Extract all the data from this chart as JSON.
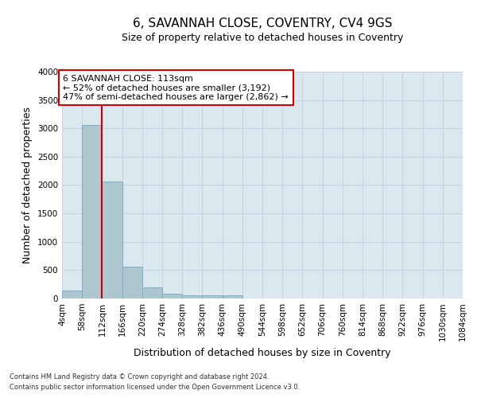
{
  "title": "6, SAVANNAH CLOSE, COVENTRY, CV4 9GS",
  "subtitle": "Size of property relative to detached houses in Coventry",
  "xlabel": "Distribution of detached houses by size in Coventry",
  "ylabel": "Number of detached properties",
  "bar_color": "#aec6cf",
  "bar_edge_color": "#7aafc8",
  "grid_color": "#c8d4e0",
  "bg_color": "#dce8f0",
  "bin_edges": [
    4,
    58,
    112,
    166,
    220,
    274,
    328,
    382,
    436,
    490,
    544,
    598,
    652,
    706,
    760,
    814,
    868,
    922,
    976,
    1030,
    1084
  ],
  "bar_heights": [
    140,
    3060,
    2060,
    560,
    200,
    80,
    60,
    50,
    50,
    0,
    0,
    0,
    0,
    0,
    0,
    0,
    0,
    0,
    0,
    0
  ],
  "property_line_x": 112,
  "property_line_color": "#cc0000",
  "annotation_text": "6 SAVANNAH CLOSE: 113sqm\n← 52% of detached houses are smaller (3,192)\n47% of semi-detached houses are larger (2,862) →",
  "annotation_box_color": "#cc0000",
  "ylim": [
    0,
    4000
  ],
  "yticks": [
    0,
    500,
    1000,
    1500,
    2000,
    2500,
    3000,
    3500,
    4000
  ],
  "footnote_line1": "Contains HM Land Registry data © Crown copyright and database right 2024.",
  "footnote_line2": "Contains public sector information licensed under the Open Government Licence v3.0.",
  "title_fontsize": 11,
  "subtitle_fontsize": 9,
  "tick_label_fontsize": 7.5,
  "ylabel_fontsize": 9,
  "xlabel_fontsize": 9,
  "footnote_fontsize": 6
}
